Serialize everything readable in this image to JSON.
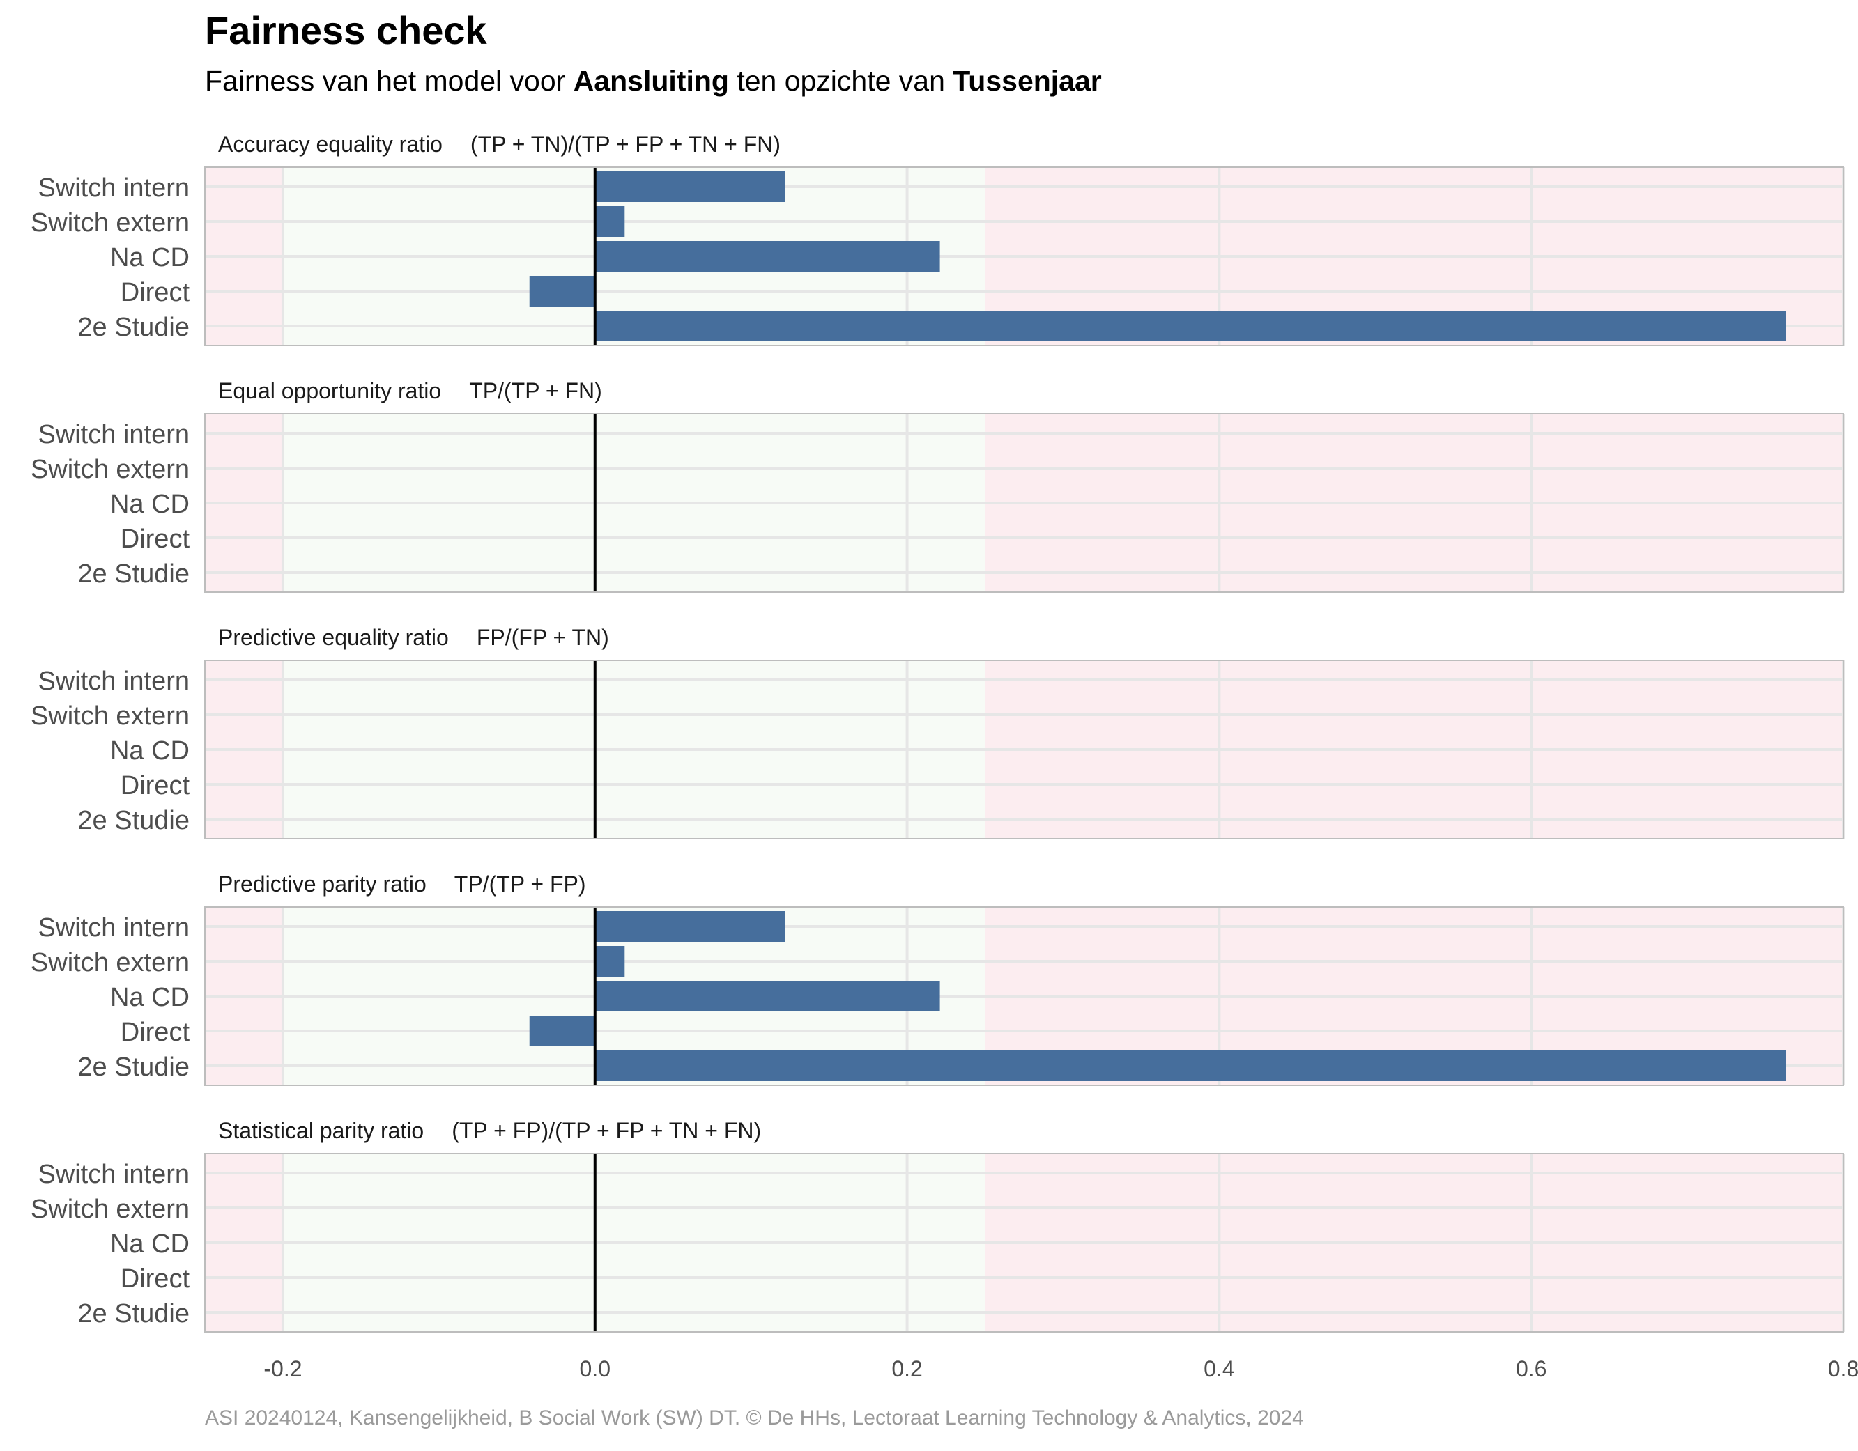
{
  "header": {
    "title": "Fairness check",
    "subtitle_pre": "Fairness van het model voor ",
    "subtitle_bold1": "Aansluiting",
    "subtitle_mid": " ten opzichte van ",
    "subtitle_bold2": "Tussenjaar"
  },
  "caption": "ASI 20240124, Kansengelijkheid, B Social Work (SW) DT. © De HHs, Lectoraat Learning Technology & Analytics, 2024",
  "colors": {
    "bar": "#466e9c",
    "fair_zone": "#f7fbf6",
    "unfair_zone": "#fcedf0",
    "grid": "#e6e6e6",
    "zero_line": "#000000",
    "panel_border": "#bdbdbd"
  },
  "chart_data": {
    "type": "bar",
    "orientation": "horizontal",
    "categories": [
      "Switch intern",
      "Switch extern",
      "Na CD",
      "Direct",
      "2e Studie"
    ],
    "xlim": [
      -0.25,
      0.8
    ],
    "xticks": [
      -0.2,
      0.0,
      0.2,
      0.4,
      0.6,
      0.8
    ],
    "xtick_labels": [
      "-0.2",
      "0.0",
      "0.2",
      "0.4",
      "0.6",
      "0.8"
    ],
    "fair_band": [
      -0.2,
      0.25
    ],
    "grid": true,
    "panels": [
      {
        "label": "Accuracy equality ratio",
        "formula": "(TP + TN)/(TP + FP + TN + FN)",
        "values": [
          0.122,
          0.019,
          0.221,
          -0.042,
          0.763
        ]
      },
      {
        "label": "Equal opportunity ratio",
        "formula": "TP/(TP + FN)",
        "values": [
          null,
          null,
          null,
          null,
          null
        ]
      },
      {
        "label": "Predictive equality ratio",
        "formula": "FP/(FP + TN)",
        "values": [
          null,
          null,
          null,
          null,
          null
        ]
      },
      {
        "label": "Predictive parity ratio",
        "formula": "TP/(TP + FP)",
        "values": [
          0.122,
          0.019,
          0.221,
          -0.042,
          0.763
        ]
      },
      {
        "label": "Statistical parity ratio",
        "formula": "(TP + FP)/(TP + FP + TN + FN)",
        "values": [
          null,
          null,
          null,
          null,
          null
        ]
      }
    ]
  }
}
